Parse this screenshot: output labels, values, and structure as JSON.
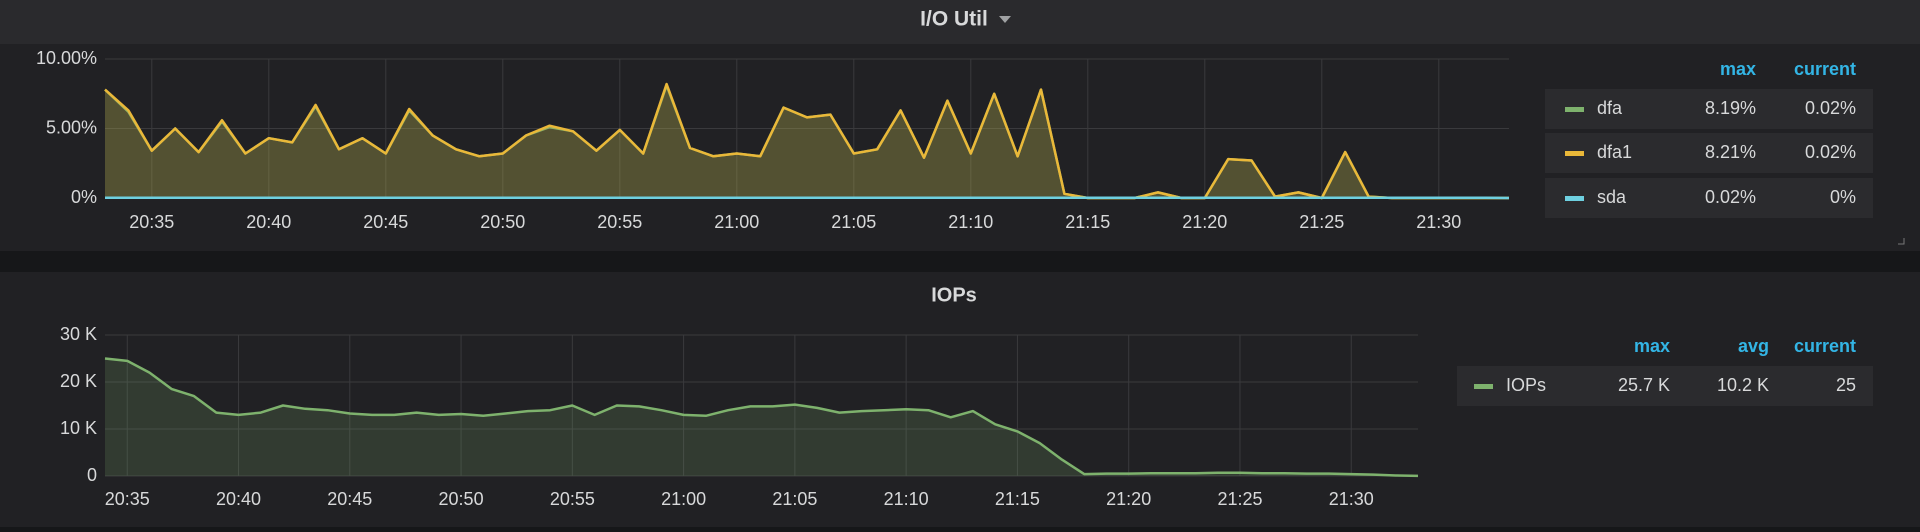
{
  "chart_data": [
    {
      "type": "line",
      "title": "I/O Util",
      "x": [
        "20:33",
        "20:34",
        "20:35",
        "20:36",
        "20:37",
        "20:38",
        "20:39",
        "20:40",
        "20:41",
        "20:42",
        "20:43",
        "20:44",
        "20:45",
        "20:46",
        "20:47",
        "20:48",
        "20:49",
        "20:50",
        "20:51",
        "20:52",
        "20:53",
        "20:54",
        "20:55",
        "20:56",
        "20:57",
        "20:58",
        "20:59",
        "21:00",
        "21:01",
        "21:02",
        "21:03",
        "21:04",
        "21:05",
        "21:06",
        "21:07",
        "21:08",
        "21:09",
        "21:10",
        "21:11",
        "21:12",
        "21:13",
        "21:14",
        "21:15",
        "21:16",
        "21:17",
        "21:18",
        "21:19",
        "21:20",
        "21:21",
        "21:22",
        "21:23",
        "21:24",
        "21:25",
        "21:26",
        "21:27",
        "21:28",
        "21:29",
        "21:30",
        "21:31",
        "21:32",
        "21:33"
      ],
      "xlim": [
        "20:33",
        "21:33"
      ],
      "xticks": [
        "20:35",
        "20:40",
        "20:45",
        "20:50",
        "20:55",
        "21:00",
        "21:05",
        "21:10",
        "21:15",
        "21:20",
        "21:25",
        "21:30"
      ],
      "ylim": [
        0,
        10
      ],
      "yticks": [
        {
          "value": 0,
          "label": "0%"
        },
        {
          "value": 5,
          "label": "5.00%"
        },
        {
          "value": 10,
          "label": "10.00%"
        }
      ],
      "grid": true,
      "legend_columns": [
        "max",
        "current"
      ],
      "series": [
        {
          "name": "dfa",
          "color": "#7eb26d",
          "stats": [
            "8.19%",
            "0.02%"
          ],
          "values": [
            7.8,
            6.2,
            3.4,
            5.0,
            3.3,
            5.5,
            3.2,
            4.3,
            4.0,
            6.6,
            3.5,
            4.3,
            3.2,
            6.3,
            4.5,
            3.5,
            3.0,
            3.2,
            4.5,
            5.1,
            4.8,
            3.4,
            4.9,
            3.2,
            8.1,
            3.6,
            3.0,
            3.2,
            3.0,
            6.5,
            5.8,
            6.0,
            3.2,
            3.5,
            6.3,
            2.9,
            7.0,
            3.2,
            7.5,
            3.0,
            7.8,
            0.3,
            0,
            0,
            0,
            0.4,
            0,
            0,
            2.8,
            2.7,
            0.1,
            0.4,
            0,
            3.3,
            0.1,
            0,
            0,
            0,
            0,
            0,
            0
          ]
        },
        {
          "name": "dfa1",
          "color": "#eab839",
          "stats": [
            "8.21%",
            "0.02%"
          ],
          "values": [
            7.8,
            6.3,
            3.4,
            5.0,
            3.3,
            5.6,
            3.2,
            4.3,
            4.0,
            6.7,
            3.5,
            4.3,
            3.2,
            6.4,
            4.5,
            3.5,
            3.0,
            3.2,
            4.5,
            5.2,
            4.8,
            3.4,
            4.9,
            3.2,
            8.2,
            3.6,
            3.0,
            3.2,
            3.0,
            6.5,
            5.8,
            6.0,
            3.2,
            3.5,
            6.3,
            2.9,
            7.0,
            3.2,
            7.5,
            3.0,
            7.8,
            0.3,
            0,
            0,
            0,
            0.4,
            0,
            0,
            2.8,
            2.7,
            0.1,
            0.4,
            0,
            3.3,
            0.1,
            0,
            0,
            0,
            0,
            0,
            0
          ]
        },
        {
          "name": "sda",
          "color": "#6ed0e0",
          "stats": [
            "0.02%",
            "0%"
          ],
          "values": [
            0.02,
            0.02,
            0.02,
            0.02,
            0.02,
            0.02,
            0.02,
            0.02,
            0.02,
            0.02,
            0.02,
            0.02,
            0.02,
            0.02,
            0.02,
            0.02,
            0.02,
            0.02,
            0.02,
            0.02,
            0.02,
            0.02,
            0.02,
            0.02,
            0.02,
            0.02,
            0.02,
            0.02,
            0.02,
            0.02,
            0.02,
            0.02,
            0.02,
            0.02,
            0.02,
            0.02,
            0.02,
            0.02,
            0.02,
            0.02,
            0.02,
            0.02,
            0.02,
            0.02,
            0.02,
            0.02,
            0.02,
            0.02,
            0.02,
            0.02,
            0.02,
            0.02,
            0.02,
            0.02,
            0.02,
            0.02,
            0.02,
            0.02,
            0.02,
            0.02,
            0
          ]
        }
      ]
    },
    {
      "type": "line",
      "title": "IOPs",
      "x": [
        "20:34",
        "20:35",
        "20:36",
        "20:37",
        "20:38",
        "20:39",
        "20:40",
        "20:41",
        "20:42",
        "20:43",
        "20:44",
        "20:45",
        "20:46",
        "20:47",
        "20:48",
        "20:49",
        "20:50",
        "20:51",
        "20:52",
        "20:53",
        "20:54",
        "20:55",
        "20:56",
        "20:57",
        "20:58",
        "20:59",
        "21:00",
        "21:01",
        "21:02",
        "21:03",
        "21:04",
        "21:05",
        "21:06",
        "21:07",
        "21:08",
        "21:09",
        "21:10",
        "21:11",
        "21:12",
        "21:13",
        "21:14",
        "21:15",
        "21:16",
        "21:17",
        "21:18",
        "21:19",
        "21:20",
        "21:21",
        "21:22",
        "21:23",
        "21:24",
        "21:25",
        "21:26",
        "21:27",
        "21:28",
        "21:29",
        "21:30",
        "21:31",
        "21:32",
        "21:33"
      ],
      "xlim": [
        "20:34",
        "21:33"
      ],
      "xticks": [
        "20:35",
        "20:40",
        "20:45",
        "20:50",
        "20:55",
        "21:00",
        "21:05",
        "21:10",
        "21:15",
        "21:20",
        "21:25",
        "21:30"
      ],
      "ylim": [
        0,
        30000
      ],
      "yticks": [
        {
          "value": 0,
          "label": "0"
        },
        {
          "value": 10000,
          "label": "10 K"
        },
        {
          "value": 20000,
          "label": "20 K"
        },
        {
          "value": 30000,
          "label": "30 K"
        }
      ],
      "grid": true,
      "legend_columns": [
        "max",
        "avg",
        "current"
      ],
      "series": [
        {
          "name": "IOPs",
          "color": "#7eb26d",
          "stats": [
            "25.7 K",
            "10.2 K",
            "25"
          ],
          "values": [
            25000,
            24500,
            22000,
            18500,
            17000,
            13500,
            13000,
            13500,
            15000,
            14300,
            14000,
            13300,
            13000,
            13000,
            13500,
            13000,
            13200,
            12800,
            13300,
            13800,
            14000,
            15000,
            13000,
            15000,
            14800,
            14000,
            13000,
            12800,
            14000,
            14800,
            14800,
            15200,
            14500,
            13500,
            13800,
            14000,
            14200,
            14000,
            12500,
            13800,
            11000,
            9500,
            7000,
            3500,
            400,
            500,
            500,
            600,
            600,
            600,
            700,
            700,
            600,
            600,
            500,
            500,
            400,
            300,
            100,
            25
          ]
        }
      ]
    }
  ]
}
